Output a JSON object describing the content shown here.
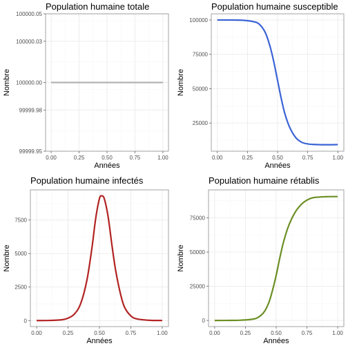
{
  "chart_data": [
    {
      "type": "line",
      "title": "Population humaine totale",
      "xlabel": "Années",
      "ylabel": "Nombre",
      "xlim": [
        -0.05,
        1.05
      ],
      "ylim": [
        99999.95,
        100000.05
      ],
      "x_ticks": [
        0.0,
        0.25,
        0.5,
        0.75,
        1.0
      ],
      "x_tick_labels": [
        "0.00",
        "0.25",
        "0.50",
        "0.75",
        "1.00"
      ],
      "y_ticks": [
        99999.95,
        99999.98,
        100000.0,
        100000.03,
        100000.05
      ],
      "y_tick_labels": [
        "99999.95",
        "99999.98",
        "100000.00",
        "100000.03",
        "100000.05"
      ],
      "grid": true,
      "series": [
        {
          "color": "#b3b3b3",
          "x": [
            0.0,
            1.0
          ],
          "y": [
            100000.0,
            100000.0
          ]
        }
      ]
    },
    {
      "type": "line",
      "title": "Population humaine susceptible",
      "xlabel": "Années",
      "ylabel": "Nombre",
      "xlim": [
        -0.05,
        1.05
      ],
      "ylim": [
        4500,
        104500
      ],
      "x_ticks": [
        0.0,
        0.25,
        0.5,
        0.75,
        1.0
      ],
      "x_tick_labels": [
        "0.00",
        "0.25",
        "0.50",
        "0.75",
        "1.00"
      ],
      "y_ticks": [
        25000,
        50000,
        75000,
        100000
      ],
      "y_tick_labels": [
        "25000",
        "50000",
        "75000",
        "100000"
      ],
      "grid": true,
      "series": [
        {
          "color": "#3a63d6",
          "x": [
            0.0,
            0.1,
            0.2,
            0.3,
            0.35,
            0.4,
            0.44,
            0.47,
            0.5,
            0.53,
            0.56,
            0.6,
            0.65,
            0.7,
            0.75,
            0.8,
            0.9,
            1.0
          ],
          "y": [
            100000,
            99980,
            99850,
            98800,
            96800,
            90500,
            80000,
            69000,
            56000,
            43000,
            32000,
            22000,
            14500,
            11000,
            9800,
            9400,
            9200,
            9300
          ]
        }
      ]
    },
    {
      "type": "line",
      "title": "Population humaine infectés",
      "xlabel": "Années",
      "ylabel": "Nombre",
      "xlim": [
        -0.05,
        1.05
      ],
      "ylim": [
        -450,
        9750
      ],
      "x_ticks": [
        0.0,
        0.25,
        0.5,
        0.75,
        1.0
      ],
      "x_tick_labels": [
        "0.00",
        "0.25",
        "0.50",
        "0.75",
        "1.00"
      ],
      "y_ticks": [
        0,
        2500,
        5000,
        7500
      ],
      "y_tick_labels": [
        "0",
        "2500",
        "5000",
        "7500"
      ],
      "grid": true,
      "series": [
        {
          "color": "#b22222",
          "x": [
            0.0,
            0.1,
            0.2,
            0.25,
            0.3,
            0.35,
            0.4,
            0.44,
            0.47,
            0.5,
            0.52,
            0.54,
            0.57,
            0.6,
            0.63,
            0.67,
            0.7,
            0.75,
            0.8,
            0.9,
            1.0
          ],
          "y": [
            0,
            10,
            60,
            180,
            480,
            1250,
            3000,
            5400,
            7600,
            9100,
            9300,
            9050,
            7700,
            5600,
            3700,
            1900,
            1000,
            350,
            120,
            20,
            5
          ]
        }
      ]
    },
    {
      "type": "line",
      "title": "Population humaine rétablis",
      "xlabel": "Années",
      "ylabel": "Nombre",
      "xlim": [
        -0.05,
        1.05
      ],
      "ylim": [
        -4500,
        95500
      ],
      "x_ticks": [
        0.0,
        0.25,
        0.5,
        0.75,
        1.0
      ],
      "x_tick_labels": [
        "0.00",
        "0.25",
        "0.50",
        "0.75",
        "1.00"
      ],
      "y_ticks": [
        0,
        25000,
        50000,
        75000
      ],
      "y_tick_labels": [
        "0",
        "25000",
        "50000",
        "75000"
      ],
      "grid": true,
      "series": [
        {
          "color": "#6b8e23",
          "x": [
            0.0,
            0.1,
            0.2,
            0.3,
            0.35,
            0.4,
            0.44,
            0.47,
            0.5,
            0.53,
            0.56,
            0.6,
            0.65,
            0.7,
            0.75,
            0.8,
            0.9,
            1.0
          ],
          "y": [
            0,
            20,
            140,
            800,
            2100,
            6000,
            13000,
            22000,
            33000,
            46000,
            57500,
            69000,
            78500,
            84500,
            88000,
            89800,
            90500,
            90600
          ]
        }
      ]
    }
  ]
}
